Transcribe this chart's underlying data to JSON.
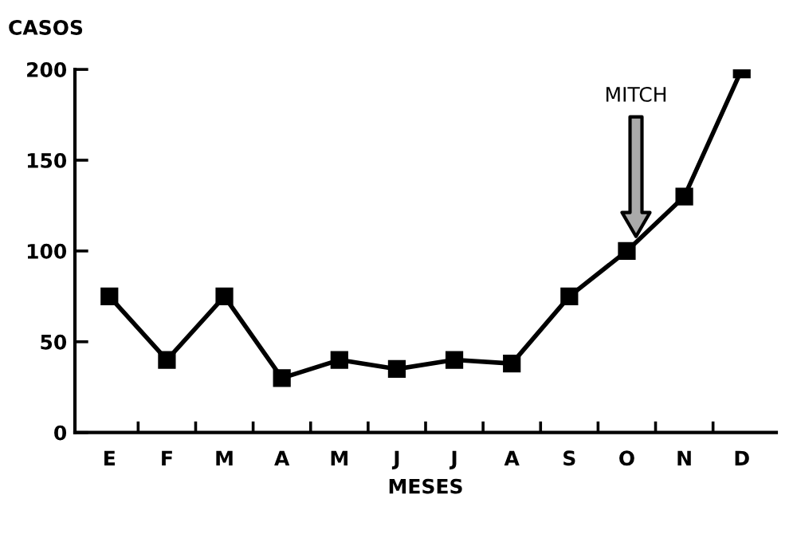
{
  "chart_data": {
    "type": "line",
    "xlabel": "MESES",
    "ylabel": "CASOS",
    "categories": [
      "E",
      "F",
      "M",
      "A",
      "M",
      "J",
      "J",
      "A",
      "S",
      "O",
      "N",
      "D"
    ],
    "series": [
      {
        "color": "#000000",
        "values": [
          75,
          40,
          75,
          30,
          40,
          35,
          40,
          38,
          75,
          100,
          130,
          200
        ]
      }
    ],
    "ylim": [
      0,
      200
    ],
    "yticks": [
      0,
      50,
      100,
      150,
      200
    ],
    "marker": "square",
    "line_style": "solid",
    "grid": false,
    "legend": false,
    "annotations": [
      "MITCH"
    ]
  }
}
